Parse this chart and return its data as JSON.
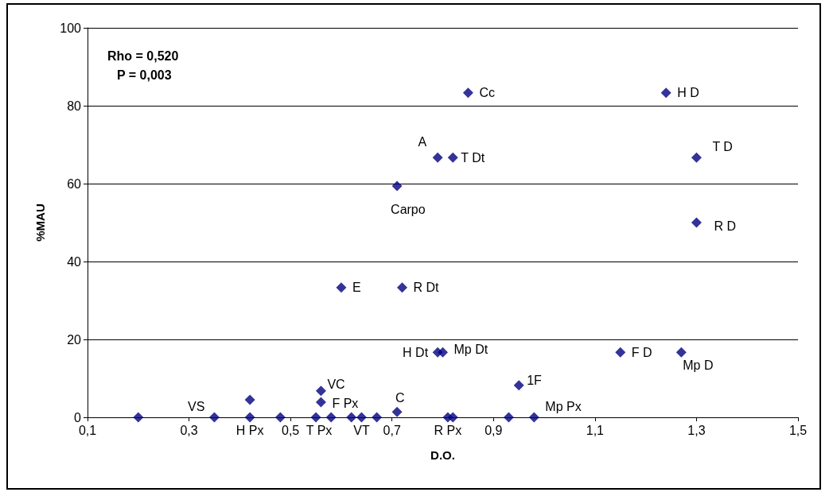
{
  "chart_data": {
    "type": "scatter",
    "xlabel": "D.O.",
    "ylabel": "%MAU",
    "color": "#000080",
    "marker": "diamond",
    "grid": "y",
    "x": [
      0.2,
      0.35,
      0.42,
      0.42,
      0.48,
      0.55,
      0.56,
      0.56,
      0.58,
      0.62,
      0.64,
      0.67,
      0.71,
      0.71,
      0.81,
      0.82,
      0.93,
      0.98,
      0.95,
      0.79,
      0.8,
      0.85,
      1.24,
      0.79,
      0.82,
      1.3,
      1.3,
      0.6,
      0.72,
      1.15,
      1.27
    ],
    "values": [
      0,
      0,
      0,
      4.5,
      0,
      0,
      6.8,
      3.9,
      0,
      0,
      0,
      0,
      1.4,
      59.4,
      0,
      0,
      0,
      0,
      8.2,
      16.7,
      16.7,
      83.3,
      83.3,
      66.7,
      66.7,
      66.7,
      50,
      33.3,
      33.3,
      16.7,
      16.7
    ],
    "xlim": [
      0.1,
      1.5
    ],
    "xticks": [
      {
        "value": 0.1,
        "label": "0,1"
      },
      {
        "value": 0.3,
        "label": "0,3"
      },
      {
        "value": 0.5,
        "label": "0,5"
      },
      {
        "value": 0.7,
        "label": "0,7"
      },
      {
        "value": 0.9,
        "label": "0,9"
      },
      {
        "value": 1.1,
        "label": "1,1"
      },
      {
        "value": 1.3,
        "label": "1,3"
      },
      {
        "value": 1.5,
        "label": "1,5"
      }
    ],
    "ylim": [
      0,
      100
    ],
    "yticks": [
      0,
      20,
      40,
      60,
      80,
      100
    ],
    "annotations": [
      "Rho = 0,520",
      "P = 0,003",
      {
        "text": "Cc",
        "x": 0.85,
        "y": 83.3
      },
      {
        "text": "H D",
        "x": 1.24,
        "y": 83.3
      },
      {
        "text": "A",
        "x": 0.79,
        "y": 66.7
      },
      {
        "text": "T Dt",
        "x": 0.82,
        "y": 66.7
      },
      {
        "text": "T D",
        "x": 1.3,
        "y": 66.7
      },
      {
        "text": "Carpo",
        "x": 0.71,
        "y": 59.4
      },
      {
        "text": "R D",
        "x": 1.3,
        "y": 50
      },
      {
        "text": "E",
        "x": 0.6,
        "y": 33.3
      },
      {
        "text": "R Dt",
        "x": 0.72,
        "y": 33.3
      },
      {
        "text": "H Dt",
        "x": 0.79,
        "y": 16.7
      },
      {
        "text": "Mp Dt",
        "x": 0.8,
        "y": 16.7
      },
      {
        "text": "F D",
        "x": 1.15,
        "y": 16.7
      },
      {
        "text": "Mp D",
        "x": 1.27,
        "y": 16.7
      },
      {
        "text": "VC",
        "x": 0.56,
        "y": 6.8
      },
      {
        "text": "F Px",
        "x": 0.56,
        "y": 3.9
      },
      {
        "text": "1F",
        "x": 0.95,
        "y": 8.2
      },
      {
        "text": "C",
        "x": 0.71,
        "y": 1.4
      },
      {
        "text": "VS",
        "x": 0.35,
        "y": 0
      },
      {
        "text": "H Px",
        "x": 0.42,
        "y": 0
      },
      {
        "text": "T Px",
        "x": 0.55,
        "y": 0
      },
      {
        "text": "VT",
        "x": 0.64,
        "y": 0
      },
      {
        "text": "R Px",
        "x": 0.81,
        "y": 0
      },
      {
        "text": "Mp Px",
        "x": 0.98,
        "y": 0
      }
    ]
  }
}
